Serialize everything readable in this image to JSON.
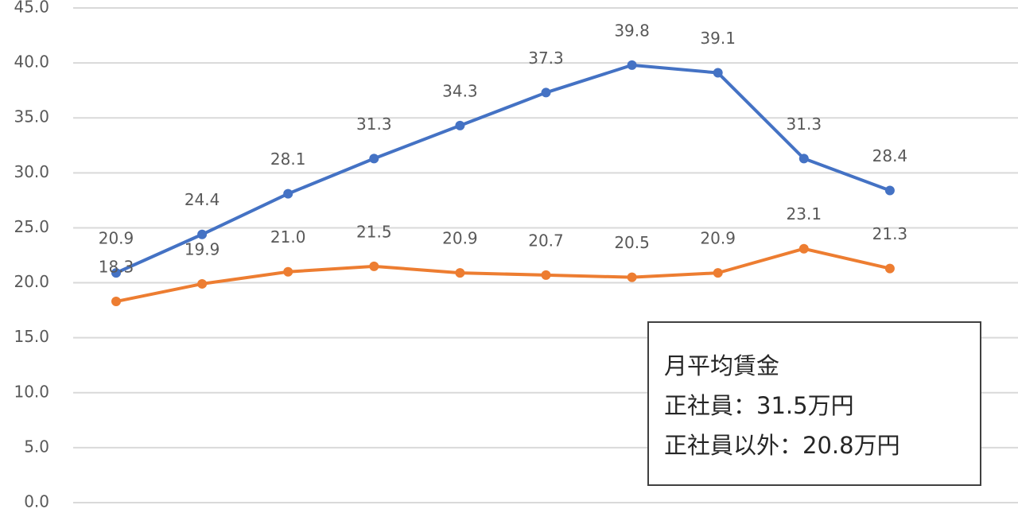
{
  "chart_data": {
    "type": "line",
    "categories": [
      null,
      null,
      null,
      null,
      null,
      null,
      null,
      null,
      null,
      null
    ],
    "series": [
      {
        "color": "#4472c4",
        "values": [
          20.9,
          24.4,
          28.1,
          31.3,
          34.3,
          37.3,
          39.8,
          39.1,
          31.3,
          28.4
        ],
        "value_labels": [
          "20.9",
          "24.4",
          "28.1",
          "31.3",
          "34.3",
          "37.3",
          "39.8",
          "39.1",
          "31.3",
          "28.4"
        ]
      },
      {
        "color": "#ed7d31",
        "values": [
          18.3,
          19.9,
          21.0,
          21.5,
          20.9,
          20.7,
          20.5,
          20.9,
          23.1,
          21.3
        ],
        "value_labels": [
          "18.3",
          "19.9",
          "21.0",
          "21.5",
          "20.9",
          "20.7",
          "20.5",
          "20.9",
          "23.1",
          "21.3"
        ]
      }
    ],
    "ylim": [
      0,
      45
    ],
    "yticks": [
      {
        "value": 0,
        "label": "0.0"
      },
      {
        "value": 5,
        "label": "5.0"
      },
      {
        "value": 10,
        "label": "10.0"
      },
      {
        "value": 15,
        "label": "15.0"
      },
      {
        "value": 20,
        "label": "20.0"
      },
      {
        "value": 25,
        "label": "25.0"
      },
      {
        "value": 30,
        "label": "30.0"
      },
      {
        "value": 35,
        "label": "35.0"
      },
      {
        "value": 40,
        "label": "40.0"
      },
      {
        "value": 45,
        "label": "45.0"
      }
    ],
    "grid": true,
    "annotation": [
      "月平均賃金",
      "正社員：31.5万円",
      "正社員以外：20.8万円"
    ]
  }
}
